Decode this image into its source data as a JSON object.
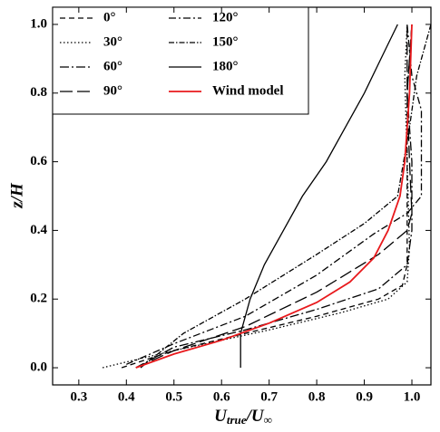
{
  "chart_data": {
    "type": "line",
    "x_label": {
      "main": "U",
      "sub": "true",
      "slash": "/U",
      "inf": "∞"
    },
    "y_label": "z/H",
    "xlim": [
      0.245,
      1.04
    ],
    "ylim": [
      -0.05,
      1.05
    ],
    "xticks": [
      0.3,
      0.4,
      0.5,
      0.6,
      0.7,
      0.8,
      0.9,
      {
        "value": 1,
        "label": "1.0"
      }
    ],
    "yticks": [
      {
        "value": 0,
        "label": "0.0"
      },
      0.2,
      0.4,
      0.6,
      0.8,
      {
        "value": 1,
        "label": "1.0"
      }
    ],
    "legend": "upper-left",
    "series": [
      {
        "name": "0°",
        "color": "#000000",
        "dash": "6,4",
        "x": [
          0.39,
          0.5,
          0.65,
          0.8,
          0.93,
          0.98,
          0.99,
          0.99,
          0.99,
          1.0
        ],
        "values": [
          0,
          0.05,
          0.1,
          0.15,
          0.2,
          0.24,
          0.3,
          0.5,
          0.8,
          1.0
        ]
      },
      {
        "name": "30°",
        "color": "#000000",
        "dash": "1.5,2.5",
        "x": [
          0.35,
          0.5,
          0.7,
          0.85,
          0.95,
          0.99,
          0.995,
          0.99,
          0.985,
          0.99
        ],
        "values": [
          0,
          0.05,
          0.11,
          0.16,
          0.2,
          0.25,
          0.35,
          0.6,
          0.85,
          1.0
        ]
      },
      {
        "name": "60°",
        "color": "#000000",
        "dash": "10,3,2,3",
        "x": [
          0.42,
          0.5,
          0.65,
          0.8,
          0.93,
          0.99,
          1.0,
          1.0,
          0.99,
          1.0
        ],
        "values": [
          0,
          0.06,
          0.11,
          0.17,
          0.23,
          0.3,
          0.4,
          0.6,
          0.8,
          1.0
        ]
      },
      {
        "name": "90°",
        "color": "#000000",
        "dash": "14,5",
        "x": [
          0.42,
          0.5,
          0.65,
          0.8,
          0.93,
          0.99,
          1.0,
          0.995,
          0.99,
          0.99
        ],
        "values": [
          0,
          0.05,
          0.12,
          0.22,
          0.33,
          0.4,
          0.45,
          0.6,
          0.8,
          1.0
        ]
      },
      {
        "name": "120°",
        "color": "#000000",
        "dash": "8,3,2,3",
        "x": [
          0.4,
          0.5,
          0.65,
          0.8,
          0.92,
          0.99,
          1.02,
          1.02,
          1.02,
          1.0,
          0.99
        ],
        "values": [
          0.01,
          0.07,
          0.15,
          0.27,
          0.39,
          0.45,
          0.5,
          0.6,
          0.75,
          0.85,
          1.0
        ]
      },
      {
        "name": "150°",
        "color": "#000000",
        "dash": "6,2,1.5,2",
        "x": [
          0.43,
          0.52,
          0.65,
          0.8,
          0.9,
          0.97,
          0.995,
          1.01,
          1.04
        ],
        "values": [
          0,
          0.1,
          0.2,
          0.33,
          0.42,
          0.5,
          0.7,
          0.85,
          1.0
        ]
      },
      {
        "name": "180°",
        "color": "#000000",
        "dash": "none",
        "x": [
          0.64,
          0.64,
          0.66,
          0.69,
          0.73,
          0.77,
          0.82,
          0.86,
          0.9,
          0.935,
          0.97
        ],
        "values": [
          0,
          0.1,
          0.2,
          0.3,
          0.4,
          0.5,
          0.6,
          0.7,
          0.8,
          0.9,
          1.0
        ]
      },
      {
        "name": "Wind model",
        "color": "#e8191c",
        "dash": "none",
        "x": [
          0.42,
          0.5,
          0.6,
          0.7,
          0.8,
          0.87,
          0.92,
          0.95,
          0.975,
          0.985,
          0.99,
          0.995,
          1.0
        ],
        "values": [
          0,
          0.04,
          0.08,
          0.13,
          0.19,
          0.25,
          0.32,
          0.4,
          0.5,
          0.6,
          0.7,
          0.8,
          1.0
        ]
      }
    ]
  }
}
